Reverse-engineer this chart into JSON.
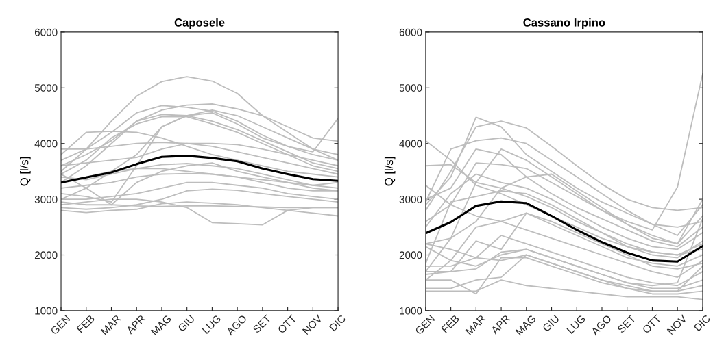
{
  "chart_data": [
    {
      "type": "line",
      "title": "Caposele",
      "ylabel": "Q [l/s]",
      "categories": [
        "GEN",
        "FEB",
        "MAR",
        "APR",
        "MAG",
        "GIU",
        "LUG",
        "AGO",
        "SET",
        "OTT",
        "NOV",
        "DIC"
      ],
      "ylim": [
        1000,
        6000
      ],
      "yticks": [
        1000,
        2000,
        3000,
        4000,
        5000,
        6000
      ],
      "grid": false,
      "marker": "none",
      "line_style": "solid",
      "series": [
        {
          "color": "#bdbdbd",
          "values": [
            3500,
            3900,
            4400,
            4850,
            5110,
            5200,
            5120,
            4900,
            4500,
            4200,
            3900,
            3700
          ]
        },
        {
          "color": "#bdbdbd",
          "values": [
            3700,
            3900,
            4200,
            4550,
            4680,
            4650,
            4580,
            4400,
            4150,
            3950,
            3800,
            3700
          ]
        },
        {
          "color": "#bdbdbd",
          "values": [
            3600,
            3800,
            4050,
            4400,
            4600,
            4690,
            4710,
            4620,
            4500,
            4300,
            4100,
            4040
          ]
        },
        {
          "color": "#bdbdbd",
          "values": [
            3000,
            3200,
            3500,
            3800,
            4300,
            4500,
            4550,
            4350,
            4100,
            3950,
            3850,
            4450
          ]
        },
        {
          "color": "#bdbdbd",
          "values": [
            3800,
            4200,
            4220,
            4200,
            4100,
            3950,
            3800,
            3700,
            3600,
            3500,
            3450,
            3400
          ]
        },
        {
          "color": "#bdbdbd",
          "values": [
            3900,
            3900,
            3950,
            4000,
            4020,
            4000,
            4000,
            3980,
            3900,
            3800,
            3700,
            3600
          ]
        },
        {
          "color": "#bdbdbd",
          "values": [
            3300,
            3600,
            4000,
            4400,
            4520,
            4500,
            4400,
            4250,
            4050,
            3850,
            3650,
            3550
          ]
        },
        {
          "color": "#bdbdbd",
          "values": [
            3450,
            3700,
            4100,
            4350,
            4480,
            4480,
            4350,
            4200,
            4000,
            3800,
            3600,
            3500
          ]
        },
        {
          "color": "#bdbdbd",
          "values": [
            3400,
            3350,
            3450,
            3550,
            3620,
            3640,
            3600,
            3550,
            3450,
            3350,
            3250,
            3200
          ]
        },
        {
          "color": "#bdbdbd",
          "values": [
            3450,
            3200,
            2900,
            3300,
            3500,
            3600,
            3650,
            3500,
            3400,
            3300,
            3250,
            3300
          ]
        },
        {
          "color": "#bdbdbd",
          "values": [
            2900,
            2950,
            3000,
            3000,
            2950,
            2850,
            2580,
            2560,
            2540,
            2800,
            2850,
            2850
          ]
        },
        {
          "color": "#bdbdbd",
          "values": [
            2800,
            2760,
            2800,
            2820,
            2920,
            2950,
            2930,
            2900,
            2850,
            2800,
            2750,
            2700
          ]
        },
        {
          "color": "#bdbdbd",
          "values": [
            2850,
            2820,
            2850,
            2900,
            3000,
            3150,
            3180,
            3160,
            3100,
            3050,
            3000,
            2950
          ]
        },
        {
          "color": "#bdbdbd",
          "values": [
            3100,
            3050,
            2950,
            3600,
            4300,
            4500,
            4600,
            4500,
            4300,
            4100,
            3900,
            3800
          ]
        },
        {
          "color": "#bdbdbd",
          "values": [
            3000,
            3000,
            3050,
            3100,
            3200,
            3300,
            3300,
            3250,
            3200,
            3100,
            3050,
            3000
          ]
        },
        {
          "color": "#bdbdbd",
          "values": [
            3200,
            3250,
            3300,
            3400,
            3450,
            3460,
            3450,
            3400,
            3300,
            3200,
            3150,
            3150
          ]
        },
        {
          "color": "#bdbdbd",
          "values": [
            3600,
            3650,
            3700,
            3750,
            3900,
            4000,
            3950,
            3850,
            3750,
            3650,
            3550,
            3450
          ]
        },
        {
          "color": "#bdbdbd",
          "values": [
            2950,
            2900,
            2900,
            2880,
            2870,
            2880,
            2880,
            2870,
            2860,
            2850,
            2850,
            2850
          ]
        },
        {
          "color": "#bdbdbd",
          "values": [
            3300,
            3400,
            3500,
            3550,
            3550,
            3500,
            3450,
            3400,
            3350,
            3300,
            3200,
            3150
          ]
        },
        {
          "color": "#000000",
          "values": [
            3300,
            3390,
            3480,
            3630,
            3760,
            3780,
            3740,
            3680,
            3550,
            3450,
            3360,
            3330
          ]
        }
      ]
    },
    {
      "type": "line",
      "title": "Cassano Irpino",
      "ylabel": "Q [l/s]",
      "categories": [
        "GEN",
        "FEB",
        "MAR",
        "APR",
        "MAG",
        "GIU",
        "LUG",
        "AGO",
        "SET",
        "OTT",
        "NOV",
        "DIC"
      ],
      "ylim": [
        1000,
        6000
      ],
      "yticks": [
        1000,
        2000,
        3000,
        4000,
        5000,
        6000
      ],
      "grid": false,
      "marker": "none",
      "line_style": "solid",
      "series": [
        {
          "color": "#bdbdbd",
          "values": [
            1700,
            2300,
            3300,
            3900,
            3700,
            3400,
            3100,
            2800,
            2600,
            2450,
            3220,
            5250
          ]
        },
        {
          "color": "#bdbdbd",
          "values": [
            2800,
            3500,
            4300,
            4400,
            4280,
            3950,
            3600,
            3270,
            3000,
            2850,
            2800,
            2850
          ]
        },
        {
          "color": "#bdbdbd",
          "values": [
            2900,
            3400,
            4470,
            4300,
            3800,
            3500,
            3200,
            2950,
            2750,
            2550,
            2500,
            2600
          ]
        },
        {
          "color": "#bdbdbd",
          "values": [
            4050,
            3700,
            3250,
            3100,
            2900,
            2700,
            2500,
            2300,
            2150,
            2050,
            2000,
            2100
          ]
        },
        {
          "color": "#bdbdbd",
          "values": [
            3600,
            3620,
            3300,
            3200,
            3050,
            2850,
            2600,
            2400,
            2200,
            2050,
            2000,
            2200
          ]
        },
        {
          "color": "#bdbdbd",
          "values": [
            2950,
            3900,
            4050,
            4100,
            4000,
            3700,
            3400,
            3100,
            2800,
            2550,
            2350,
            2900
          ]
        },
        {
          "color": "#bdbdbd",
          "values": [
            2600,
            2900,
            3650,
            3620,
            3550,
            3300,
            3050,
            2800,
            2550,
            2350,
            2200,
            2700
          ]
        },
        {
          "color": "#bdbdbd",
          "values": [
            3000,
            3200,
            3900,
            3800,
            3400,
            3100,
            2850,
            2650,
            2450,
            2250,
            2150,
            2500
          ]
        },
        {
          "color": "#bdbdbd",
          "values": [
            2500,
            3100,
            3450,
            3300,
            3200,
            3000,
            2750,
            2500,
            2300,
            2150,
            2100,
            2400
          ]
        },
        {
          "color": "#bdbdbd",
          "values": [
            2200,
            2300,
            2600,
            3200,
            3400,
            3450,
            3150,
            2850,
            2550,
            2300,
            2200,
            3000
          ]
        },
        {
          "color": "#bdbdbd",
          "values": [
            1850,
            2950,
            3050,
            3150,
            3100,
            2900,
            2650,
            2400,
            2150,
            2000,
            1950,
            2250
          ]
        },
        {
          "color": "#bdbdbd",
          "values": [
            1550,
            1900,
            2500,
            2600,
            2750,
            2550,
            2350,
            2150,
            1950,
            1850,
            1800,
            2000
          ]
        },
        {
          "color": "#bdbdbd",
          "values": [
            1700,
            1700,
            2250,
            2100,
            2750,
            2600,
            2400,
            2200,
            2000,
            1800,
            1750,
            1850
          ]
        },
        {
          "color": "#bdbdbd",
          "values": [
            1800,
            1800,
            1950,
            2350,
            2200,
            2050,
            1900,
            1750,
            1600,
            1500,
            1450,
            1700
          ]
        },
        {
          "color": "#bdbdbd",
          "values": [
            1650,
            1700,
            1750,
            2050,
            2100,
            1950,
            1800,
            1650,
            1500,
            1400,
            1400,
            1550
          ]
        },
        {
          "color": "#bdbdbd",
          "values": [
            1400,
            1400,
            1550,
            1600,
            2000,
            1850,
            1700,
            1550,
            1450,
            1350,
            1350,
            1450
          ]
        },
        {
          "color": "#bdbdbd",
          "values": [
            1550,
            1550,
            1300,
            1950,
            1950,
            1800,
            1650,
            1500,
            1400,
            1300,
            1300,
            1350
          ]
        },
        {
          "color": "#bdbdbd",
          "values": [
            1350,
            1350,
            1350,
            1550,
            1450,
            1400,
            1350,
            1300,
            1250,
            1250,
            1250,
            1200
          ]
        },
        {
          "color": "#bdbdbd",
          "values": [
            2200,
            2100,
            1950,
            1900,
            2000,
            1850,
            1700,
            1550,
            1400,
            1350,
            1350,
            1800
          ]
        },
        {
          "color": "#bdbdbd",
          "values": [
            2150,
            1900,
            1800,
            2000,
            2100,
            1950,
            1800,
            1650,
            1500,
            1450,
            1500,
            2650
          ]
        },
        {
          "color": "#bdbdbd",
          "values": [
            3250,
            2900,
            2700,
            2600,
            2450,
            2300,
            2150,
            2000,
            1850,
            1700,
            1600,
            1900
          ]
        },
        {
          "color": "#000000",
          "values": [
            2390,
            2590,
            2880,
            2960,
            2930,
            2700,
            2450,
            2230,
            2040,
            1900,
            1880,
            2160
          ]
        }
      ]
    }
  ]
}
